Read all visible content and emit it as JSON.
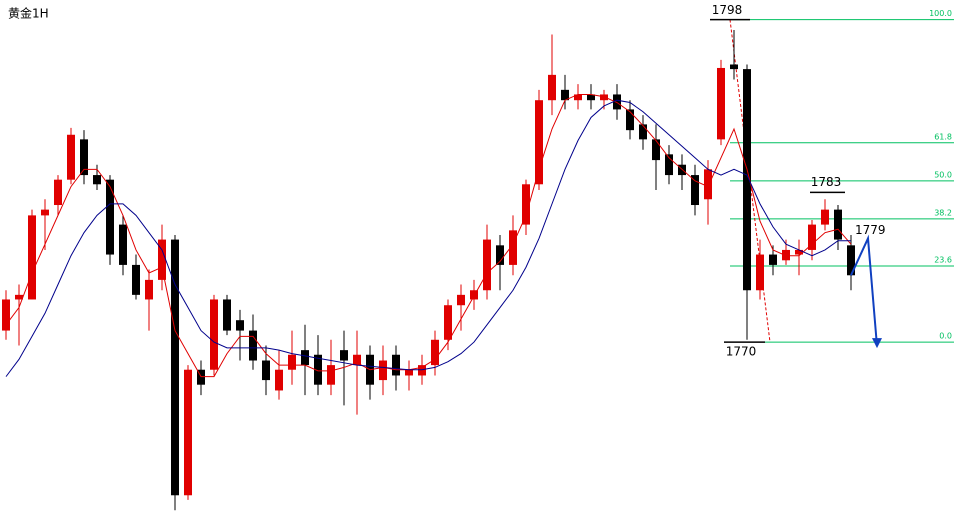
{
  "chart_data": {
    "type": "candlestick",
    "title": "黄金1H",
    "ylim": [
      1754.9,
      1799.7
    ],
    "up_color": "#e00000",
    "down_color": "#000000",
    "candles": [
      [
        1771.0,
        1774.5,
        1770.2,
        1773.7
      ],
      [
        1773.7,
        1775.0,
        1769.7,
        1774.1
      ],
      [
        1773.7,
        1781.5,
        1773.7,
        1781.0
      ],
      [
        1781.0,
        1782.4,
        1778.0,
        1781.5
      ],
      [
        1781.9,
        1784.5,
        1781.0,
        1784.1
      ],
      [
        1784.1,
        1788.6,
        1783.7,
        1788.0
      ],
      [
        1787.6,
        1788.4,
        1783.7,
        1784.5
      ],
      [
        1784.5,
        1785.4,
        1783.2,
        1783.7
      ],
      [
        1784.1,
        1784.5,
        1776.7,
        1777.6
      ],
      [
        1780.2,
        1781.0,
        1775.8,
        1776.7
      ],
      [
        1776.7,
        1777.6,
        1773.7,
        1774.1
      ],
      [
        1773.7,
        1776.3,
        1771.0,
        1775.4
      ],
      [
        1775.4,
        1780.2,
        1774.5,
        1778.9
      ],
      [
        1778.9,
        1779.3,
        1755.4,
        1756.7
      ],
      [
        1756.7,
        1768.0,
        1756.3,
        1767.6
      ],
      [
        1767.6,
        1768.4,
        1765.4,
        1766.3
      ],
      [
        1767.6,
        1774.1,
        1767.1,
        1773.7
      ],
      [
        1773.7,
        1774.1,
        1770.6,
        1771.0
      ],
      [
        1771.9,
        1772.8,
        1768.4,
        1771.0
      ],
      [
        1771.0,
        1772.4,
        1767.6,
        1768.4
      ],
      [
        1768.4,
        1769.7,
        1765.4,
        1766.7
      ],
      [
        1765.8,
        1769.3,
        1765.0,
        1767.6
      ],
      [
        1767.6,
        1771.0,
        1766.3,
        1768.9
      ],
      [
        1769.3,
        1771.5,
        1765.4,
        1768.0
      ],
      [
        1768.9,
        1770.6,
        1765.4,
        1766.3
      ],
      [
        1766.3,
        1770.2,
        1765.4,
        1768.0
      ],
      [
        1769.3,
        1771.0,
        1764.5,
        1768.4
      ],
      [
        1768.0,
        1771.0,
        1763.7,
        1768.9
      ],
      [
        1768.9,
        1769.7,
        1765.0,
        1766.3
      ],
      [
        1766.7,
        1769.7,
        1765.4,
        1768.4
      ],
      [
        1768.9,
        1769.7,
        1765.8,
        1767.1
      ],
      [
        1767.1,
        1768.4,
        1765.8,
        1767.6
      ],
      [
        1767.1,
        1768.9,
        1766.3,
        1768.0
      ],
      [
        1768.0,
        1771.0,
        1767.1,
        1770.2
      ],
      [
        1770.2,
        1773.7,
        1769.3,
        1773.2
      ],
      [
        1773.2,
        1775.0,
        1771.0,
        1774.1
      ],
      [
        1773.7,
        1775.4,
        1772.8,
        1774.5
      ],
      [
        1774.5,
        1780.2,
        1773.7,
        1778.9
      ],
      [
        1778.4,
        1779.3,
        1774.5,
        1776.7
      ],
      [
        1776.7,
        1781.0,
        1775.8,
        1779.7
      ],
      [
        1780.2,
        1784.1,
        1779.3,
        1783.7
      ],
      [
        1783.7,
        1791.9,
        1783.2,
        1791.0
      ],
      [
        1791.0,
        1796.7,
        1789.7,
        1793.2
      ],
      [
        1791.9,
        1793.2,
        1790.2,
        1791.0
      ],
      [
        1791.0,
        1792.4,
        1790.2,
        1791.5
      ],
      [
        1791.5,
        1792.4,
        1790.2,
        1791.0
      ],
      [
        1791.0,
        1791.9,
        1790.2,
        1791.5
      ],
      [
        1791.5,
        1792.4,
        1789.3,
        1790.2
      ],
      [
        1790.2,
        1791.0,
        1787.6,
        1788.4
      ],
      [
        1788.9,
        1789.7,
        1786.7,
        1787.6
      ],
      [
        1787.6,
        1788.9,
        1783.2,
        1785.8
      ],
      [
        1786.3,
        1787.1,
        1783.7,
        1784.5
      ],
      [
        1785.4,
        1786.3,
        1783.2,
        1784.5
      ],
      [
        1784.5,
        1785.4,
        1781.0,
        1781.9
      ],
      [
        1782.4,
        1785.8,
        1780.2,
        1785.0
      ],
      [
        1787.6,
        1794.5,
        1787.1,
        1793.8
      ],
      [
        1794.1,
        1797.1,
        1792.8,
        1793.7
      ],
      [
        1793.7,
        1794.1,
        1770.2,
        1774.5
      ],
      [
        1774.5,
        1778.9,
        1773.7,
        1777.6
      ],
      [
        1777.6,
        1778.4,
        1775.8,
        1776.7
      ],
      [
        1777.1,
        1778.9,
        1776.7,
        1778.0
      ],
      [
        1777.6,
        1778.9,
        1775.8,
        1778.0
      ],
      [
        1778.0,
        1780.6,
        1777.1,
        1780.2
      ],
      [
        1780.2,
        1782.4,
        1779.7,
        1781.5
      ],
      [
        1781.5,
        1781.9,
        1778.0,
        1778.9
      ],
      [
        1778.4,
        1779.3,
        1774.5,
        1775.8
      ]
    ],
    "series": [
      {
        "color": "#e00000",
        "values": [
          1771.5,
          1773,
          1776,
          1778.5,
          1781,
          1783.5,
          1785,
          1785,
          1783.5,
          1781,
          1778,
          1776,
          1776.5,
          1771,
          1769,
          1767,
          1767,
          1769,
          1770.5,
          1770.5,
          1769,
          1768,
          1768,
          1768,
          1767.5,
          1767.5,
          1767.8,
          1768.2,
          1767.6,
          1767.8,
          1767.6,
          1767.6,
          1767.8,
          1768.5,
          1770,
          1772,
          1774,
          1776,
          1777,
          1778.5,
          1781,
          1785,
          1788.5,
          1791,
          1791.5,
          1791.5,
          1791.3,
          1790.8,
          1790,
          1788.8,
          1787.5,
          1786,
          1785,
          1784,
          1783.5,
          1786,
          1788.5,
          1785,
          1780.5,
          1778,
          1777.5,
          1777.5,
          1778.5,
          1779.5,
          1779.8,
          1778.5
        ]
      },
      {
        "color": "#00008b",
        "values": [
          1767,
          1768.5,
          1770.5,
          1772.5,
          1775,
          1777.5,
          1779.5,
          1781,
          1782,
          1782,
          1781,
          1779.5,
          1778,
          1775,
          1773,
          1771,
          1770,
          1769.5,
          1769.5,
          1769.5,
          1769.5,
          1769.3,
          1769,
          1768.8,
          1768.6,
          1768.4,
          1768.2,
          1768,
          1767.9,
          1767.8,
          1767.7,
          1767.6,
          1767.6,
          1767.8,
          1768.3,
          1769,
          1770,
          1771.5,
          1773,
          1774.5,
          1776.5,
          1779,
          1782,
          1785,
          1787.5,
          1789.5,
          1790.5,
          1791,
          1790.8,
          1790,
          1789,
          1788,
          1787,
          1786,
          1785,
          1784.5,
          1785,
          1784.5,
          1782,
          1780,
          1778.5,
          1778,
          1777.5,
          1778,
          1778.8,
          1778.8
        ]
      }
    ],
    "annotations": [
      {
        "value": 1798
      },
      {
        "value": 1770
      },
      {
        "value": 1783
      },
      {
        "value": 1779
      }
    ],
    "fib_color": "#00c060",
    "fib_levels": [
      {
        "value": 100,
        "label": "100.0"
      },
      {
        "value": 61.8,
        "label": "61.8"
      },
      {
        "value": 50,
        "label": "50.0"
      },
      {
        "value": 38.2,
        "label": "38.2"
      },
      {
        "value": 23.6,
        "label": "23.6"
      },
      {
        "value": 0,
        "label": "0.0"
      }
    ]
  }
}
